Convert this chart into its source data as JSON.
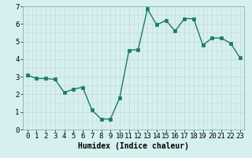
{
  "x": [
    0,
    1,
    2,
    3,
    4,
    5,
    6,
    7,
    8,
    9,
    10,
    11,
    12,
    13,
    14,
    15,
    16,
    17,
    18,
    19,
    20,
    21,
    22,
    23
  ],
  "y": [
    3.1,
    2.9,
    2.9,
    2.85,
    2.1,
    2.3,
    2.4,
    1.1,
    0.6,
    0.6,
    1.8,
    4.5,
    4.55,
    6.85,
    5.95,
    6.2,
    5.6,
    6.3,
    6.3,
    4.8,
    5.2,
    5.2,
    4.9,
    4.1
  ],
  "line_color": "#1a7a6e",
  "marker": "s",
  "markersize": 2.5,
  "linewidth": 1.0,
  "bg_color": "#d6f0f0",
  "grid_color": "#c8dada",
  "xlabel": "Humidex (Indice chaleur)",
  "xlabel_fontsize": 7,
  "tick_fontsize": 6.5,
  "ylim": [
    0,
    7
  ],
  "xlim": [
    -0.5,
    23.5
  ],
  "yticks": [
    0,
    1,
    2,
    3,
    4,
    5,
    6,
    7
  ],
  "xticks": [
    0,
    1,
    2,
    3,
    4,
    5,
    6,
    7,
    8,
    9,
    10,
    11,
    12,
    13,
    14,
    15,
    16,
    17,
    18,
    19,
    20,
    21,
    22,
    23
  ]
}
